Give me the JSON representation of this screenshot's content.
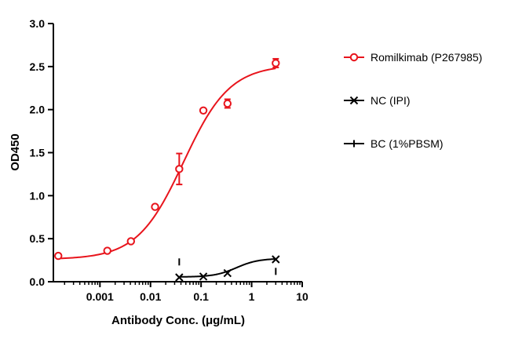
{
  "chart_data": {
    "type": "scatter",
    "xlabel": "Antibody Conc. (μg/mL)",
    "ylabel": "OD450",
    "xscale": "log",
    "xlim": [
      0.00012,
      10
    ],
    "ylim": [
      0,
      3.0
    ],
    "x_ticks": [
      {
        "value": 0.001,
        "label": "0.001"
      },
      {
        "value": 0.01,
        "label": "0.01"
      },
      {
        "value": 0.1,
        "label": "0.1"
      },
      {
        "value": 1,
        "label": "1"
      },
      {
        "value": 10,
        "label": "10"
      }
    ],
    "y_ticks": [
      {
        "value": 0,
        "label": "0.0"
      },
      {
        "value": 0.5,
        "label": "0.5"
      },
      {
        "value": 1.0,
        "label": "1.0"
      },
      {
        "value": 1.5,
        "label": "1.5"
      },
      {
        "value": 2.0,
        "label": "2.0"
      },
      {
        "value": 2.5,
        "label": "2.5"
      },
      {
        "value": 3.0,
        "label": "3.0"
      }
    ],
    "grid": false,
    "legend_position": "right",
    "series": [
      {
        "name": "Romilkimab (P267985)",
        "color": "#e8141c",
        "marker": "open-circle",
        "fit": "4PL sigmoid",
        "points": [
          {
            "x": 0.00015,
            "y": 0.3,
            "err": 0
          },
          {
            "x": 0.0014,
            "y": 0.36,
            "err": 0
          },
          {
            "x": 0.0041,
            "y": 0.47,
            "err": 0
          },
          {
            "x": 0.0123,
            "y": 0.87,
            "err": 0
          },
          {
            "x": 0.037,
            "y": 1.31,
            "err": 0.18
          },
          {
            "x": 0.111,
            "y": 1.99,
            "err": 0
          },
          {
            "x": 0.333,
            "y": 2.07,
            "err": 0.05
          },
          {
            "x": 3.0,
            "y": 2.54,
            "err": 0.05
          }
        ],
        "fit_params": {
          "bottom": 0.26,
          "top": 2.52,
          "ec50": 0.045,
          "hill": 0.95
        }
      },
      {
        "name": "NC (IPI)",
        "color": "#000000",
        "marker": "x",
        "fit": "4PL sigmoid",
        "points": [
          {
            "x": 0.037,
            "y": 0.05
          },
          {
            "x": 0.111,
            "y": 0.06
          },
          {
            "x": 0.333,
            "y": 0.1
          },
          {
            "x": 3.0,
            "y": 0.26
          }
        ],
        "fit_params": {
          "bottom": 0.055,
          "top": 0.27,
          "ec50": 0.5,
          "hill": 2.0
        }
      },
      {
        "name": "BC (1%PBSM)",
        "color": "#000000",
        "marker": "vertical-dash",
        "fit": "none",
        "points": [
          {
            "x": 0.037,
            "y": 0.23
          },
          {
            "x": 3.0,
            "y": 0.12
          }
        ]
      }
    ]
  }
}
